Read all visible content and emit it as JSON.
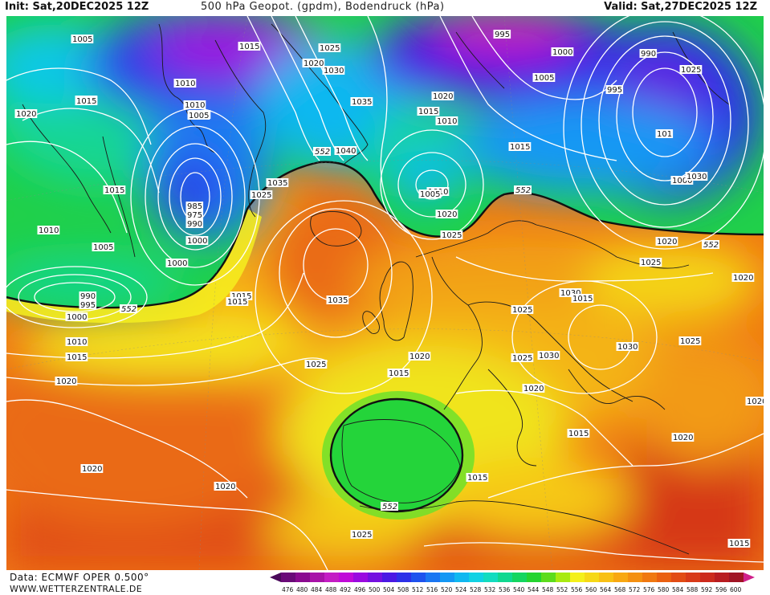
{
  "header": {
    "init": "Init: Sat,20DEC2025 12Z",
    "title": "500 hPa Geopot. (gpdm), Bodendruck (hPa)",
    "valid": "Valid: Sat,27DEC2025 12Z"
  },
  "footer": {
    "source": "Data: ECMWF OPER 0.500°",
    "site": "WWW.WETTERZENTRALE.DE"
  },
  "legend": {
    "levels": [
      "476",
      "480",
      "484",
      "488",
      "492",
      "496",
      "500",
      "504",
      "508",
      "512",
      "516",
      "520",
      "524",
      "528",
      "532",
      "536",
      "540",
      "544",
      "548",
      "552",
      "556",
      "560",
      "564",
      "568",
      "572",
      "576",
      "580",
      "584",
      "588",
      "592",
      "596",
      "600"
    ],
    "colors": [
      "#6a0a78",
      "#8a0a90",
      "#a812a8",
      "#c41cc4",
      "#c00ad8",
      "#9a0ae0",
      "#7410e0",
      "#4a18e4",
      "#2c30e8",
      "#1e52ee",
      "#1a76f2",
      "#1498f4",
      "#10b8f0",
      "#10d2e4",
      "#12dcc0",
      "#10d890",
      "#14d660",
      "#24d430",
      "#5cdc1c",
      "#a8ea10",
      "#f4f01a",
      "#f6d816",
      "#f8c014",
      "#f8a812",
      "#f49010",
      "#f07810",
      "#ea6010",
      "#e24c14",
      "#d83a18",
      "#cc2a1c",
      "#b81c20",
      "#a01424"
    ],
    "arrow_colors": [
      "#4a0a5a",
      "#d0208a"
    ]
  },
  "map": {
    "contour_552_label": "552",
    "pressure_labels": [
      "1005",
      "1015",
      "1025",
      "1015",
      "995",
      "1000",
      "1005",
      "1010",
      "1015",
      "1020",
      "1025",
      "1035",
      "1030",
      "1020",
      "1010",
      "1005",
      "1015",
      "1010",
      "1005",
      "995",
      "990",
      "1020",
      "1015",
      "1010",
      "1005",
      "1000",
      "1000",
      "985",
      "990",
      "975",
      "1010",
      "1005",
      "1000",
      "1015",
      "1020",
      "1025",
      "1040",
      "1035",
      "1025",
      "990",
      "995",
      "1000",
      "1010",
      "1015",
      "1020",
      "1020",
      "1020",
      "1025",
      "1030",
      "1035",
      "1025",
      "1020",
      "1015",
      "1015",
      "1015",
      "1025",
      "1030",
      "1020",
      "1025",
      "1030",
      "1025",
      "1020",
      "1015",
      "1020",
      "1015",
      "1020",
      "1025",
      "1015",
      "1020",
      "1015",
      "101",
      "1030"
    ]
  }
}
